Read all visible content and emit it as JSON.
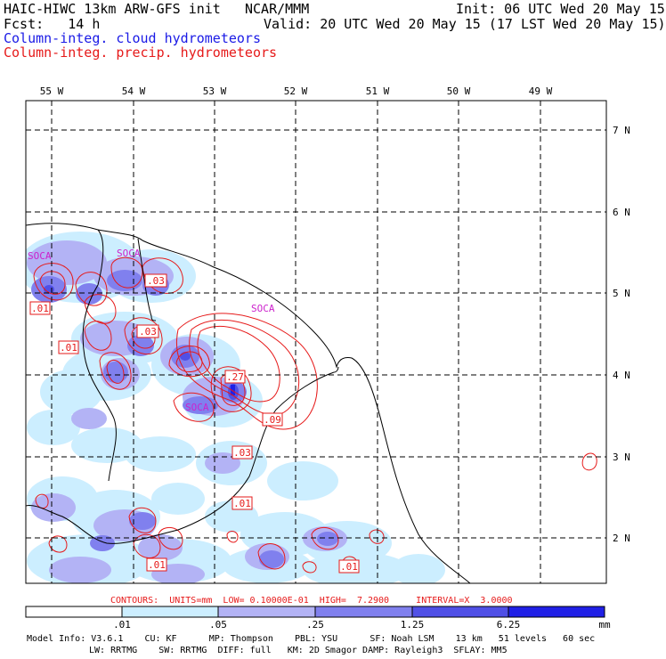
{
  "header": {
    "model_title": "HAIC-HIWC 13km ARW-GFS init",
    "org": "NCAR/MMM",
    "init": "Init: 06 UTC Wed 20 May 15",
    "fcst": "Fcst:   14 h",
    "valid": "Valid: 20 UTC Wed 20 May 15 (17 LST Wed 20 May 15)",
    "cloud_label": "Column-integ. cloud hydrometeors",
    "precip_label": "Column-integ. precip. hydrometeors"
  },
  "colors": {
    "cloud_series": "#1a1ae6",
    "precip_series": "#e61a1a",
    "shade_1": "#cceeff",
    "shade_2": "#b3b3f5",
    "shade_3": "#8080ee",
    "shade_4": "#5050e6",
    "shade_5": "#2020e6",
    "place_label": "#cc22cc"
  },
  "map": {
    "lon_labels": [
      "55 W",
      "54 W",
      "53 W",
      "52 W",
      "51 W",
      "50 W",
      "49 W"
    ],
    "lat_labels": [
      "7 N",
      "6 N",
      "5 N",
      "4 N",
      "3 N",
      "2 N"
    ],
    "place_labels": [
      "SOCA",
      "SOCA",
      "SOCA",
      "SOCA"
    ],
    "contour_labels": [
      ".03",
      ".01",
      ".01",
      ".03",
      ".27",
      ".09",
      ".03",
      ".01",
      ".01",
      ".01"
    ]
  },
  "contours_info": "CONTOURS:  UNITS=mm  LOW= 0.10000E-01  HIGH=  7.2900     INTERVAL=X  3.0000",
  "colorbar": {
    "ticks": [
      ".01",
      ".05",
      ".25",
      "1.25",
      "6.25"
    ],
    "units": "mm"
  },
  "model_info": {
    "line1": "Model Info: V3.6.1    CU: KF      MP: Thompson    PBL: YSU      SF: Noah LSM    13 km   51 levels   60 sec",
    "line2": "LW: RRTMG    SW: RRTMG  DIFF: full   KM: 2D Smagor DAMP: Rayleigh3  SFLAY: MM5"
  }
}
